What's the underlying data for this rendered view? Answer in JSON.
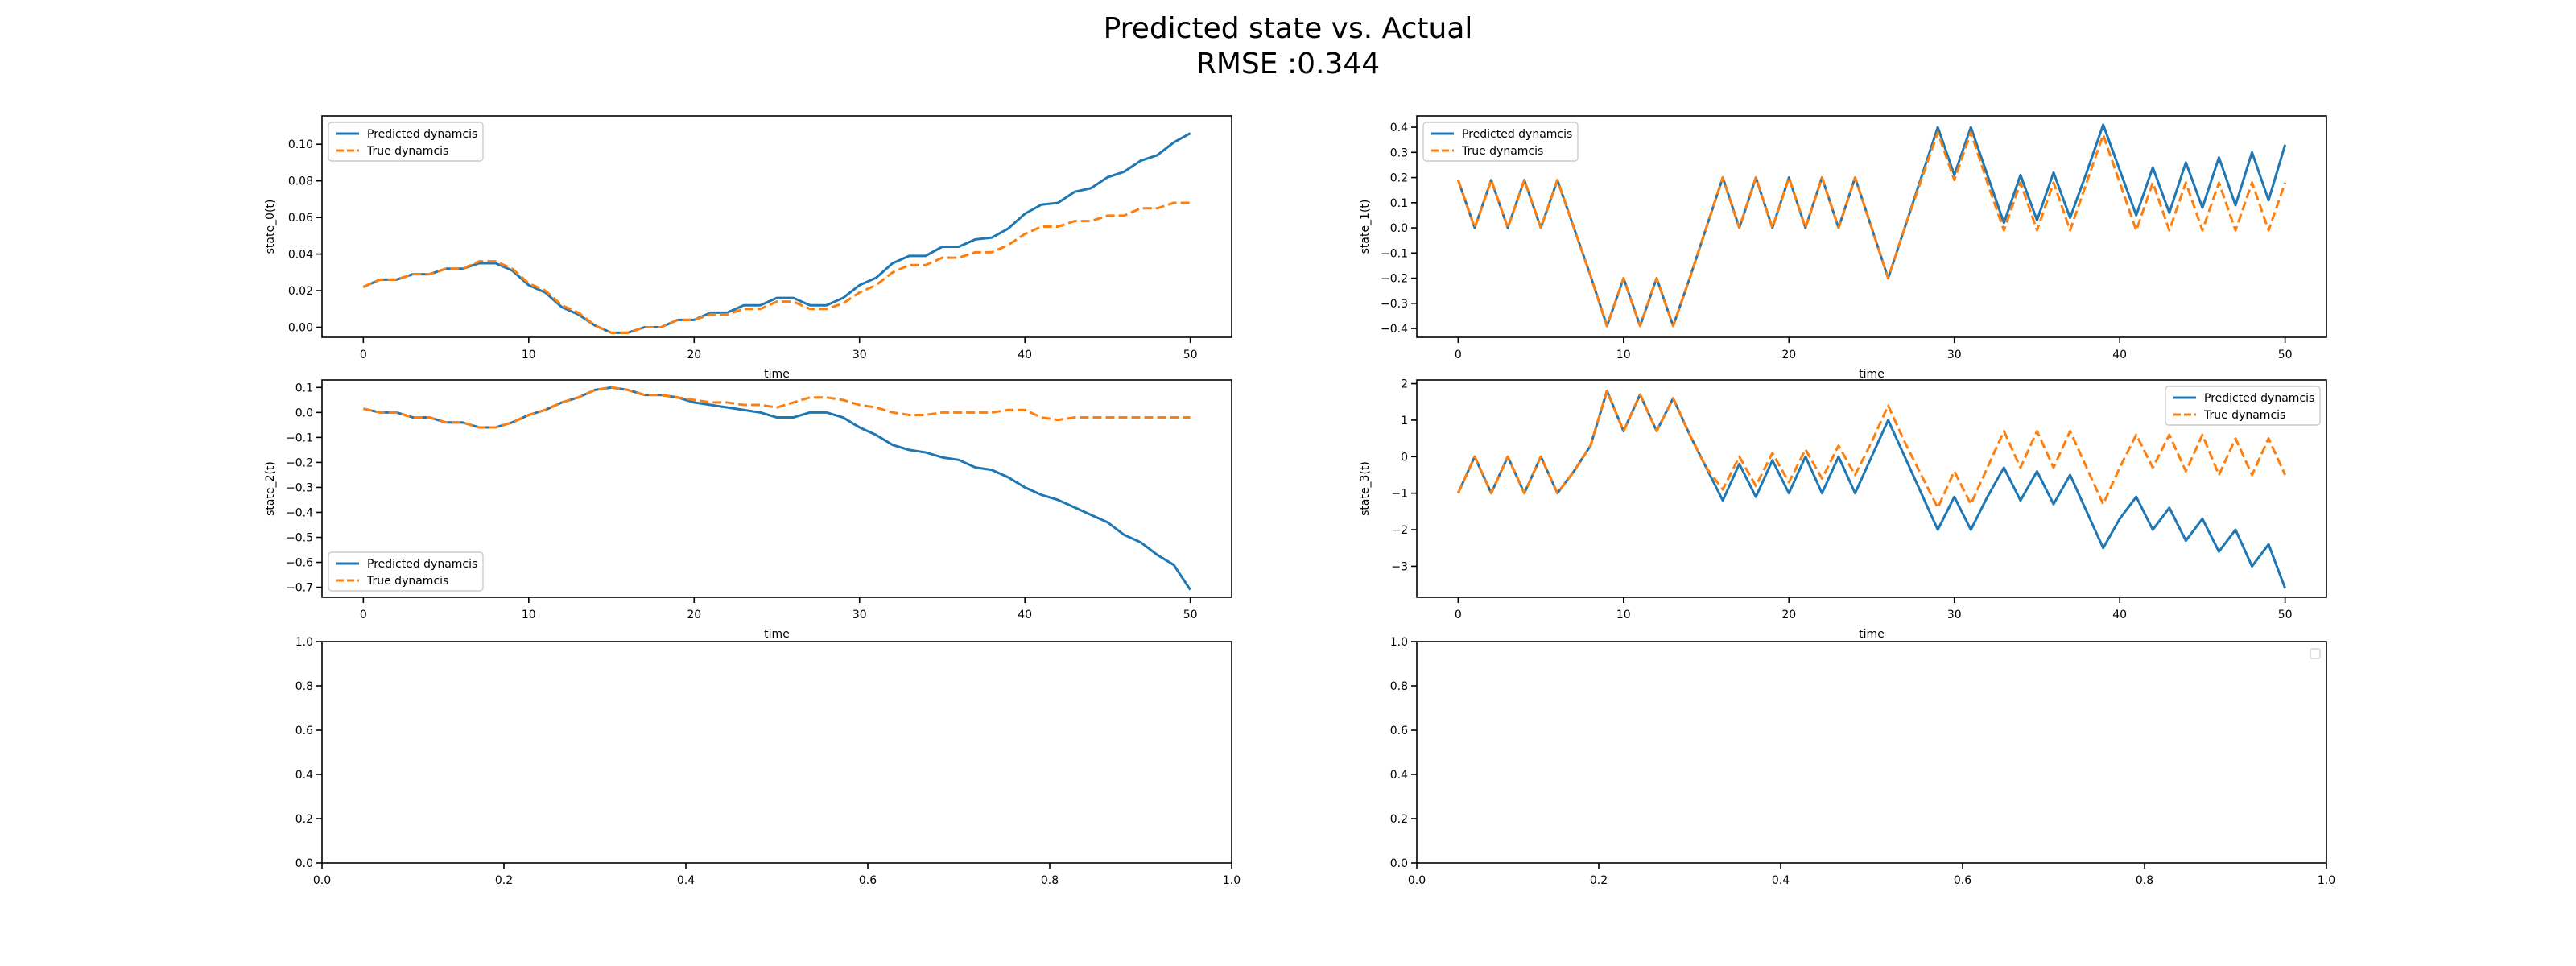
{
  "figure": {
    "title_line1": "Predicted state vs. Actual",
    "title_line2": "RMSE :0.344"
  },
  "colors": {
    "predicted": "#1f77b4",
    "true": "#ff7f0e"
  },
  "chart_data": [
    {
      "type": "line",
      "panel": "top-left",
      "xlabel": "time",
      "ylabel": "state_0(t)",
      "xlim": [
        -2.5,
        52.5
      ],
      "ylim": [
        -0.0055,
        0.1155
      ],
      "xticks": [
        0,
        10,
        20,
        30,
        40,
        50
      ],
      "xtick_labels": [
        "0",
        "10",
        "20",
        "30",
        "40",
        "50"
      ],
      "yticks": [
        0.0,
        0.02,
        0.04,
        0.06,
        0.08,
        0.1
      ],
      "ytick_labels": [
        "0.00",
        "0.02",
        "0.04",
        "0.06",
        "0.08",
        "0.10"
      ],
      "legend": "upper-left",
      "x": [
        0,
        1,
        2,
        3,
        4,
        5,
        6,
        7,
        8,
        9,
        10,
        11,
        12,
        13,
        14,
        15,
        16,
        17,
        18,
        19,
        20,
        21,
        22,
        23,
        24,
        25,
        26,
        27,
        28,
        29,
        30,
        31,
        32,
        33,
        34,
        35,
        36,
        37,
        38,
        39,
        40,
        41,
        42,
        43,
        44,
        45,
        46,
        47,
        48,
        49,
        50
      ],
      "series": [
        {
          "name": "Predicted dynamcis",
          "style": "solid",
          "color": "#1f77b4",
          "values": [
            0.022,
            0.026,
            0.026,
            0.029,
            0.029,
            0.032,
            0.032,
            0.035,
            0.035,
            0.031,
            0.023,
            0.019,
            0.011,
            0.007,
            0.001,
            -0.003,
            -0.003,
            0.0,
            0.0,
            0.004,
            0.004,
            0.008,
            0.008,
            0.012,
            0.012,
            0.016,
            0.016,
            0.012,
            0.012,
            0.016,
            0.023,
            0.027,
            0.035,
            0.039,
            0.039,
            0.044,
            0.044,
            0.048,
            0.049,
            0.054,
            0.062,
            0.067,
            0.068,
            0.074,
            0.076,
            0.082,
            0.085,
            0.091,
            0.094,
            0.101,
            0.106
          ]
        },
        {
          "name": "True dynamcis",
          "style": "dashed",
          "color": "#ff7f0e",
          "values": [
            0.022,
            0.026,
            0.026,
            0.029,
            0.029,
            0.032,
            0.032,
            0.036,
            0.036,
            0.032,
            0.024,
            0.02,
            0.012,
            0.008,
            0.001,
            -0.003,
            -0.003,
            0.0,
            0.0,
            0.004,
            0.004,
            0.007,
            0.007,
            0.01,
            0.01,
            0.014,
            0.014,
            0.01,
            0.01,
            0.013,
            0.019,
            0.023,
            0.03,
            0.034,
            0.034,
            0.038,
            0.038,
            0.041,
            0.041,
            0.045,
            0.051,
            0.055,
            0.055,
            0.058,
            0.058,
            0.061,
            0.061,
            0.065,
            0.065,
            0.068,
            0.068
          ]
        }
      ]
    },
    {
      "type": "line",
      "panel": "top-right",
      "xlabel": "time",
      "ylabel": "state_1(t)",
      "xlim": [
        -2.5,
        52.5
      ],
      "ylim": [
        -0.435,
        0.445
      ],
      "xticks": [
        0,
        10,
        20,
        30,
        40,
        50
      ],
      "xtick_labels": [
        "0",
        "10",
        "20",
        "30",
        "40",
        "50"
      ],
      "yticks": [
        -0.4,
        -0.3,
        -0.2,
        -0.1,
        0.0,
        0.1,
        0.2,
        0.3,
        0.4
      ],
      "ytick_labels": [
        "−0.4",
        "−0.3",
        "−0.2",
        "−0.1",
        "0.0",
        "0.1",
        "0.2",
        "0.3",
        "0.4"
      ],
      "legend": "upper-left",
      "x": [
        0,
        1,
        2,
        3,
        4,
        5,
        6,
        7,
        8,
        9,
        10,
        11,
        12,
        13,
        14,
        15,
        16,
        17,
        18,
        19,
        20,
        21,
        22,
        23,
        24,
        25,
        26,
        27,
        28,
        29,
        30,
        31,
        32,
        33,
        34,
        35,
        36,
        37,
        38,
        39,
        40,
        41,
        42,
        43,
        44,
        45,
        46,
        47,
        48,
        49,
        50
      ],
      "series": [
        {
          "name": "Predicted dynamcis",
          "style": "solid",
          "color": "#1f77b4",
          "values": [
            0.19,
            0.0,
            0.19,
            0.0,
            0.19,
            0.0,
            0.19,
            0.0,
            -0.19,
            -0.39,
            -0.2,
            -0.39,
            -0.2,
            -0.39,
            -0.2,
            0.0,
            0.2,
            0.0,
            0.2,
            0.0,
            0.2,
            0.0,
            0.2,
            0.0,
            0.2,
            0.0,
            -0.2,
            0.0,
            0.2,
            0.4,
            0.21,
            0.4,
            0.21,
            0.02,
            0.21,
            0.03,
            0.22,
            0.04,
            0.22,
            0.41,
            0.23,
            0.05,
            0.24,
            0.06,
            0.26,
            0.08,
            0.28,
            0.09,
            0.3,
            0.11,
            0.33
          ]
        },
        {
          "name": "True dynamcis",
          "style": "dashed",
          "color": "#ff7f0e",
          "values": [
            0.19,
            0.0,
            0.19,
            0.0,
            0.19,
            0.0,
            0.19,
            0.0,
            -0.19,
            -0.39,
            -0.2,
            -0.39,
            -0.2,
            -0.39,
            -0.2,
            0.0,
            0.2,
            0.0,
            0.2,
            0.0,
            0.2,
            0.0,
            0.2,
            0.0,
            0.2,
            0.0,
            -0.2,
            0.0,
            0.19,
            0.38,
            0.19,
            0.38,
            0.18,
            -0.01,
            0.18,
            -0.01,
            0.18,
            -0.01,
            0.18,
            0.37,
            0.18,
            -0.01,
            0.18,
            -0.01,
            0.18,
            -0.01,
            0.18,
            -0.01,
            0.18,
            -0.01,
            0.18
          ]
        }
      ]
    },
    {
      "type": "line",
      "panel": "middle-left",
      "xlabel": "time",
      "ylabel": "state_2(t)",
      "xlim": [
        -2.5,
        52.5
      ],
      "ylim": [
        -0.74,
        0.13
      ],
      "xticks": [
        0,
        10,
        20,
        30,
        40,
        50
      ],
      "xtick_labels": [
        "0",
        "10",
        "20",
        "30",
        "40",
        "50"
      ],
      "yticks": [
        -0.7,
        -0.6,
        -0.5,
        -0.4,
        -0.3,
        -0.2,
        -0.1,
        0.0,
        0.1
      ],
      "ytick_labels": [
        "−0.7",
        "−0.6",
        "−0.5",
        "−0.4",
        "−0.3",
        "−0.2",
        "−0.1",
        "0.0",
        "0.1"
      ],
      "legend": "lower-left",
      "x": [
        0,
        1,
        2,
        3,
        4,
        5,
        6,
        7,
        8,
        9,
        10,
        11,
        12,
        13,
        14,
        15,
        16,
        17,
        18,
        19,
        20,
        21,
        22,
        23,
        24,
        25,
        26,
        27,
        28,
        29,
        30,
        31,
        32,
        33,
        34,
        35,
        36,
        37,
        38,
        39,
        40,
        41,
        42,
        43,
        44,
        45,
        46,
        47,
        48,
        49,
        50
      ],
      "series": [
        {
          "name": "Predicted dynamcis",
          "style": "solid",
          "color": "#1f77b4",
          "values": [
            0.015,
            0.0,
            0.0,
            -0.02,
            -0.02,
            -0.04,
            -0.04,
            -0.06,
            -0.06,
            -0.04,
            -0.01,
            0.01,
            0.04,
            0.06,
            0.09,
            0.1,
            0.09,
            0.07,
            0.07,
            0.06,
            0.04,
            0.03,
            0.02,
            0.01,
            0.0,
            -0.02,
            -0.02,
            0.0,
            0.0,
            -0.02,
            -0.06,
            -0.09,
            -0.13,
            -0.15,
            -0.16,
            -0.18,
            -0.19,
            -0.22,
            -0.23,
            -0.26,
            -0.3,
            -0.33,
            -0.35,
            -0.38,
            -0.41,
            -0.44,
            -0.49,
            -0.52,
            -0.57,
            -0.61,
            -0.71
          ]
        },
        {
          "name": "True dynamcis",
          "style": "dashed",
          "color": "#ff7f0e",
          "values": [
            0.015,
            0.0,
            0.0,
            -0.02,
            -0.02,
            -0.04,
            -0.04,
            -0.06,
            -0.06,
            -0.04,
            -0.01,
            0.01,
            0.04,
            0.06,
            0.09,
            0.1,
            0.09,
            0.07,
            0.07,
            0.06,
            0.05,
            0.04,
            0.04,
            0.03,
            0.03,
            0.02,
            0.04,
            0.06,
            0.06,
            0.05,
            0.03,
            0.02,
            0.0,
            -0.01,
            -0.01,
            0.0,
            0.0,
            0.0,
            0.0,
            0.01,
            0.01,
            -0.02,
            -0.03,
            -0.02,
            -0.02,
            -0.02,
            -0.02,
            -0.02,
            -0.02,
            -0.02,
            -0.02
          ]
        }
      ]
    },
    {
      "type": "line",
      "panel": "middle-right",
      "xlabel": "time",
      "ylabel": "state_3(t)",
      "xlim": [
        -2.5,
        52.5
      ],
      "ylim": [
        -3.85,
        2.1
      ],
      "xticks": [
        0,
        10,
        20,
        30,
        40,
        50
      ],
      "xtick_labels": [
        "0",
        "10",
        "20",
        "30",
        "40",
        "50"
      ],
      "yticks": [
        -3,
        -2,
        -1,
        0,
        1,
        2
      ],
      "ytick_labels": [
        "−3",
        "−2",
        "−1",
        "0",
        "1",
        "2"
      ],
      "legend": "upper-right",
      "x": [
        0,
        1,
        2,
        3,
        4,
        5,
        6,
        7,
        8,
        9,
        10,
        11,
        12,
        13,
        14,
        15,
        16,
        17,
        18,
        19,
        20,
        21,
        22,
        23,
        24,
        25,
        26,
        27,
        28,
        29,
        30,
        31,
        32,
        33,
        34,
        35,
        36,
        37,
        38,
        39,
        40,
        41,
        42,
        43,
        44,
        45,
        46,
        47,
        48,
        49,
        50
      ],
      "series": [
        {
          "name": "Predicted dynamcis",
          "style": "solid",
          "color": "#1f77b4",
          "values": [
            -1.0,
            0.0,
            -1.0,
            0.0,
            -1.0,
            0.0,
            -1.0,
            -0.4,
            0.3,
            1.8,
            0.7,
            1.7,
            0.7,
            1.6,
            0.6,
            -0.3,
            -1.2,
            -0.2,
            -1.1,
            -0.1,
            -1.0,
            0.0,
            -1.0,
            0.0,
            -1.0,
            0.0,
            1.0,
            0.0,
            -1.0,
            -2.0,
            -1.1,
            -2.0,
            -1.1,
            -0.3,
            -1.2,
            -0.4,
            -1.3,
            -0.5,
            -1.5,
            -2.5,
            -1.7,
            -1.1,
            -2.0,
            -1.4,
            -2.3,
            -1.7,
            -2.6,
            -2.0,
            -3.0,
            -2.4,
            -3.6
          ]
        },
        {
          "name": "True dynamcis",
          "style": "dashed",
          "color": "#ff7f0e",
          "values": [
            -1.0,
            0.0,
            -1.0,
            0.0,
            -1.0,
            0.0,
            -1.0,
            -0.4,
            0.3,
            1.8,
            0.7,
            1.7,
            0.7,
            1.6,
            0.6,
            -0.3,
            -0.9,
            0.0,
            -0.8,
            0.1,
            -0.7,
            0.2,
            -0.6,
            0.3,
            -0.5,
            0.4,
            1.4,
            0.4,
            -0.5,
            -1.4,
            -0.4,
            -1.3,
            -0.3,
            0.7,
            -0.3,
            0.7,
            -0.3,
            0.7,
            -0.3,
            -1.3,
            -0.3,
            0.6,
            -0.3,
            0.6,
            -0.4,
            0.6,
            -0.5,
            0.5,
            -0.5,
            0.5,
            -0.5
          ]
        }
      ]
    },
    {
      "type": "line",
      "panel": "bottom-left",
      "xlabel": "",
      "ylabel": "",
      "xlim": [
        0,
        1
      ],
      "ylim": [
        0,
        1
      ],
      "xticks": [
        0.0,
        0.2,
        0.4,
        0.6,
        0.8,
        1.0
      ],
      "xtick_labels": [
        "0.0",
        "0.2",
        "0.4",
        "0.6",
        "0.8",
        "1.0"
      ],
      "yticks": [
        0.0,
        0.2,
        0.4,
        0.6,
        0.8,
        1.0
      ],
      "ytick_labels": [
        "0.0",
        "0.2",
        "0.4",
        "0.6",
        "0.8",
        "1.0"
      ],
      "legend": "none",
      "x": [],
      "series": []
    },
    {
      "type": "line",
      "panel": "bottom-right",
      "xlabel": "",
      "ylabel": "",
      "xlim": [
        0,
        1
      ],
      "ylim": [
        0,
        1
      ],
      "xticks": [
        0.0,
        0.2,
        0.4,
        0.6,
        0.8,
        1.0
      ],
      "xtick_labels": [
        "0.0",
        "0.2",
        "0.4",
        "0.6",
        "0.8",
        "1.0"
      ],
      "yticks": [
        0.0,
        0.2,
        0.4,
        0.6,
        0.8,
        1.0
      ],
      "ytick_labels": [
        "0.0",
        "0.2",
        "0.4",
        "0.6",
        "0.8",
        "1.0"
      ],
      "legend": "empty-upper-right",
      "x": [],
      "series": []
    }
  ]
}
